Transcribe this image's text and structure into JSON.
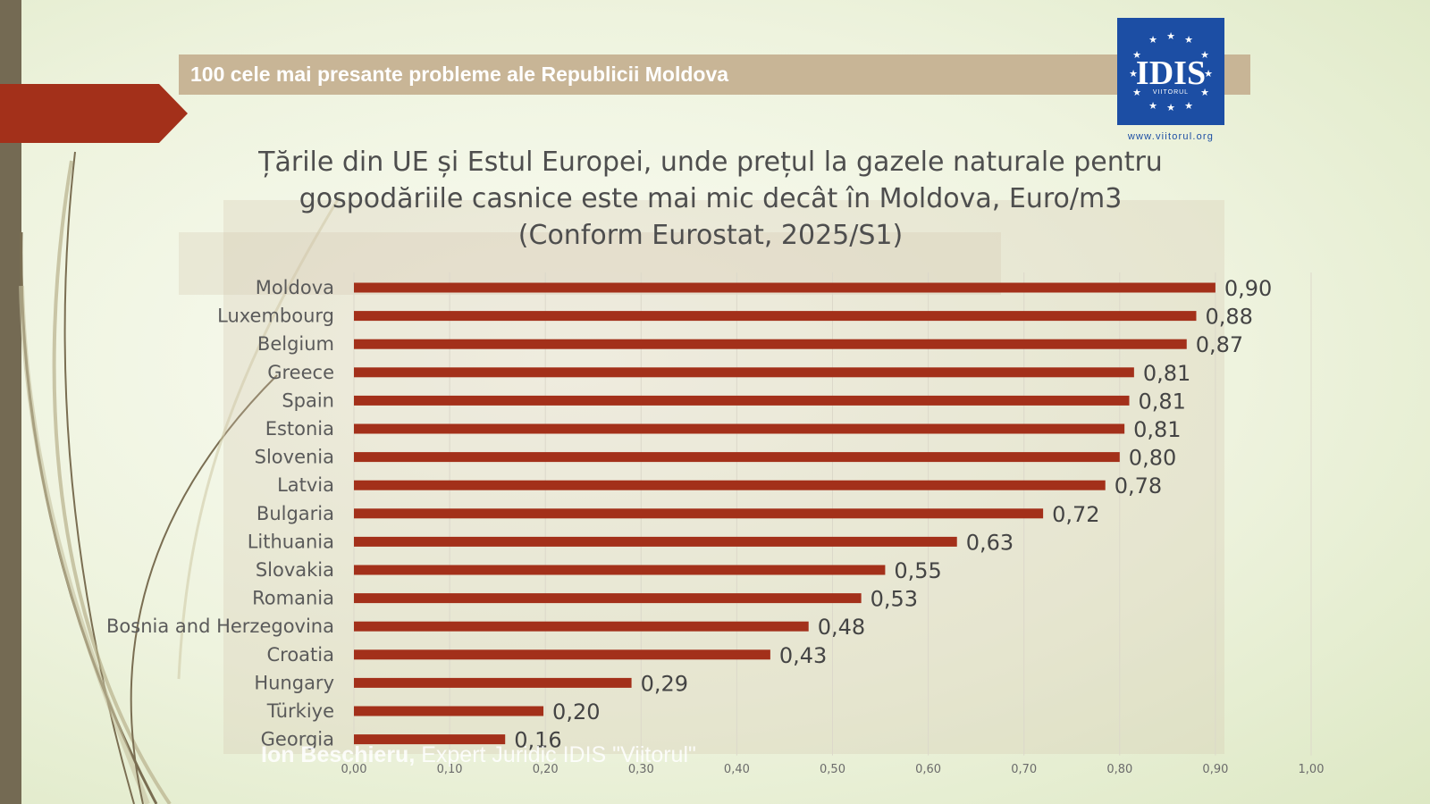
{
  "header": {
    "title": "100 cele mai presante probleme ale Republicii Moldova"
  },
  "logo": {
    "text": "IDIS",
    "subtext": "VIITORUL",
    "url": "www.viitorul.org",
    "color": "#1c4ea4"
  },
  "footer": {
    "author_name": "Ion Beschieru,",
    "author_role": "Expert Juridic IDIS \"Viitorul\""
  },
  "colors": {
    "accent": "#a3301a",
    "header_band": "#c8b596",
    "strip": "#746a53"
  },
  "chart_data": {
    "type": "bar",
    "orientation": "horizontal",
    "title": "Țările din UE și Estul Europei, unde prețul la gazele naturale pentru\ngospodăriile casnice este mai mic decât în Moldova, Euro/m3\n(Conform Eurostat, 2025/S1)",
    "categories": [
      "Moldova",
      "Luxembourg",
      "Belgium",
      "Greece",
      "Spain",
      "Estonia",
      "Slovenia",
      "Latvia",
      "Bulgaria",
      "Lithuania",
      "Slovakia",
      "Romania",
      "Bosnia and Herzegovina",
      "Croatia",
      "Hungary",
      "Türkiye",
      "Georgia"
    ],
    "values": [
      0.9,
      0.88,
      0.87,
      0.815,
      0.81,
      0.805,
      0.8,
      0.785,
      0.72,
      0.63,
      0.555,
      0.53,
      0.475,
      0.435,
      0.29,
      0.198,
      0.158
    ],
    "data_labels": [
      "0,90",
      "0,88",
      "0,87",
      "0,81",
      "0,81",
      "0,81",
      "0,80",
      "0,78",
      "0,72",
      "0,63",
      "0,55",
      "0,53",
      "0,48",
      "0,43",
      "0,29",
      "0,20",
      "0,16"
    ],
    "xlim": [
      0,
      1.0
    ],
    "x_ticks": [
      "0,00",
      "0,10",
      "0,20",
      "0,30",
      "0,40",
      "0,50",
      "0,60",
      "0,70",
      "0,80",
      "0,90",
      "1,00"
    ],
    "grid": true,
    "series_color": "#a3301a"
  }
}
